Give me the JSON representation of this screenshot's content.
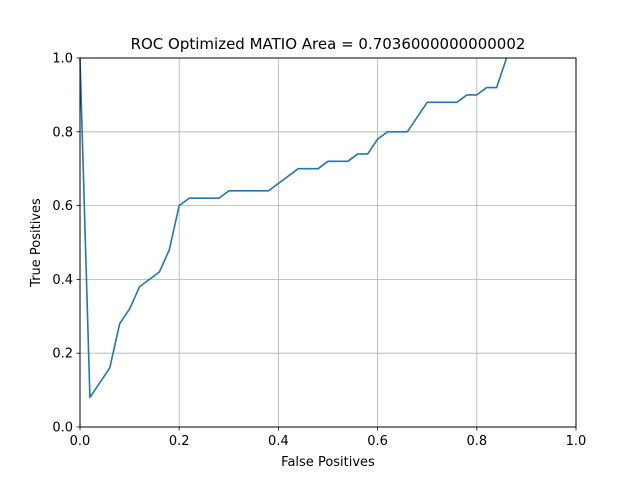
{
  "chart_data": {
    "type": "line",
    "title": "ROC Optimized MATIO Area = 0.7036000000000002",
    "xlabel": "False Positives",
    "ylabel": "True Positives",
    "xlim": [
      0.0,
      1.0
    ],
    "ylim": [
      0.0,
      1.0
    ],
    "xticks": [
      0.0,
      0.2,
      0.4,
      0.6,
      0.8,
      1.0
    ],
    "yticks": [
      0.0,
      0.2,
      0.4,
      0.6,
      0.8,
      1.0
    ],
    "xtick_labels": [
      "0.0",
      "0.2",
      "0.4",
      "0.6",
      "0.8",
      "1.0"
    ],
    "ytick_labels": [
      "0.0",
      "0.2",
      "0.4",
      "0.6",
      "0.8",
      "1.0"
    ],
    "grid": true,
    "series": [
      {
        "color": "#1f77b4",
        "x": [
          0.0,
          0.02,
          0.06,
          0.08,
          0.1,
          0.12,
          0.16,
          0.18,
          0.2,
          0.22,
          0.28,
          0.3,
          0.38,
          0.44,
          0.48,
          0.5,
          0.54,
          0.56,
          0.58,
          0.6,
          0.62,
          0.66,
          0.7,
          0.76,
          0.78,
          0.8,
          0.82,
          0.84,
          0.86
        ],
        "y": [
          1.0,
          0.08,
          0.16,
          0.28,
          0.32,
          0.38,
          0.42,
          0.48,
          0.6,
          0.62,
          0.62,
          0.64,
          0.64,
          0.7,
          0.7,
          0.72,
          0.72,
          0.74,
          0.74,
          0.78,
          0.8,
          0.8,
          0.88,
          0.88,
          0.9,
          0.9,
          0.92,
          0.92,
          1.0
        ]
      }
    ]
  }
}
